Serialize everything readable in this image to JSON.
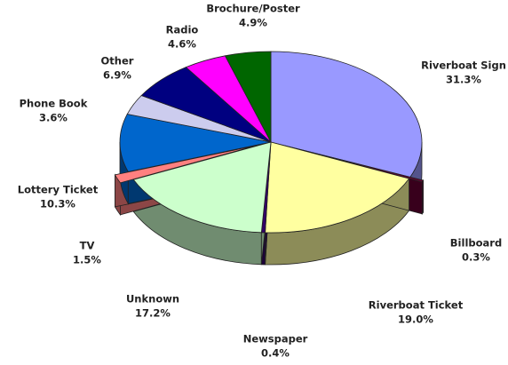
{
  "chart_data": {
    "type": "pie",
    "categories": [
      "Riverboat Sign",
      "Billboard",
      "Riverboat Ticket",
      "Newspaper",
      "Unknown",
      "TV",
      "Lottery Ticket",
      "Phone Book",
      "Other",
      "Radio",
      "Brochure/Poster"
    ],
    "values": [
      31.3,
      0.3,
      19.0,
      0.4,
      17.2,
      1.5,
      10.3,
      3.6,
      6.9,
      4.6,
      4.9
    ],
    "value_labels": [
      "31.3%",
      "0.3%",
      "19.0%",
      "0.4%",
      "17.2%",
      "1.5%",
      "10.3%",
      "3.6%",
      "6.9%",
      "4.6%",
      "4.9%"
    ],
    "colors": [
      "#9999ff",
      "#660033",
      "#ffffa0",
      "#330066",
      "#ccffcc",
      "#ff8080",
      "#0066cc",
      "#ccccee",
      "#000080",
      "#ff00ff",
      "#006600"
    ]
  }
}
